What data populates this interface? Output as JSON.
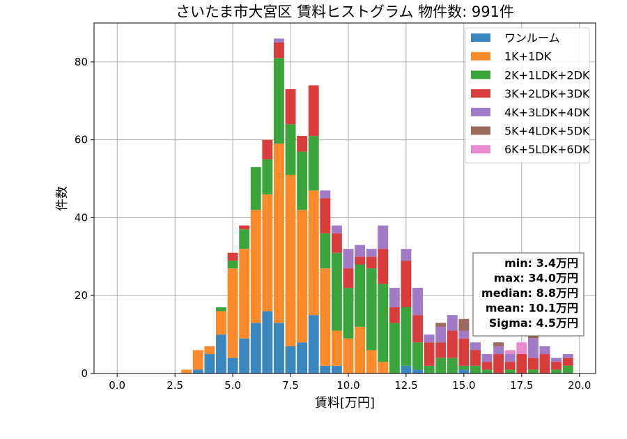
{
  "chart_data": {
    "type": "bar",
    "stacked": true,
    "title": "さいたま市大宮区 賃料ヒストグラム 物件数: 991件",
    "xlabel": "賃料[万円]",
    "ylabel": "件数",
    "xlim": [
      -1.0,
      20.7
    ],
    "ylim": [
      0,
      90
    ],
    "grid": true,
    "legend_position": "top-right",
    "bin_width": 0.5,
    "x_ticks": [
      {
        "value": 0.0,
        "label": "0.0"
      },
      {
        "value": 2.5,
        "label": "2.5"
      },
      {
        "value": 5.0,
        "label": "5.0"
      },
      {
        "value": 7.5,
        "label": "7.5"
      },
      {
        "value": 10.0,
        "label": "10.0"
      },
      {
        "value": 12.5,
        "label": "12.5"
      },
      {
        "value": 15.0,
        "label": "15.0"
      },
      {
        "value": 17.5,
        "label": "17.5"
      },
      {
        "value": 20.0,
        "label": "20.0"
      }
    ],
    "y_ticks": [
      {
        "value": 0,
        "label": "0"
      },
      {
        "value": 20,
        "label": "20"
      },
      {
        "value": 40,
        "label": "40"
      },
      {
        "value": 60,
        "label": "60"
      },
      {
        "value": 80,
        "label": "80"
      }
    ],
    "x": [
      3.0,
      3.5,
      4.0,
      4.5,
      5.0,
      5.5,
      6.0,
      6.5,
      7.0,
      7.5,
      8.0,
      8.5,
      9.0,
      9.5,
      10.0,
      10.5,
      11.0,
      11.5,
      12.0,
      12.5,
      13.0,
      13.5,
      14.0,
      14.5,
      15.0,
      15.5,
      16.0,
      16.5,
      17.0,
      17.5,
      18.0,
      18.5,
      19.0,
      19.5
    ],
    "series": [
      {
        "name": "ワンルーム",
        "color": "#3a87c0",
        "values": [
          0,
          1,
          5,
          10,
          4,
          9,
          13,
          16,
          13,
          7,
          8,
          15,
          2,
          2,
          0,
          0,
          0,
          0,
          0,
          2,
          1,
          0,
          0,
          0,
          1,
          0,
          0,
          0,
          0,
          0,
          0,
          0,
          0,
          0
        ]
      },
      {
        "name": "1K+1DK",
        "color": "#fd8a2b",
        "values": [
          1,
          5,
          2,
          6,
          23,
          23,
          29,
          30,
          46,
          44,
          34,
          32,
          25,
          9,
          9,
          12,
          6,
          3,
          0,
          0,
          0,
          0,
          0,
          0,
          0,
          0,
          0,
          0,
          0,
          0,
          0,
          0,
          0,
          0
        ]
      },
      {
        "name": "2K+1LDK+2DK",
        "color": "#3ca43c",
        "values": [
          0,
          0,
          0,
          1,
          2,
          5,
          11,
          9,
          22,
          13,
          15,
          14,
          9,
          20,
          13,
          16,
          21,
          20,
          13,
          15,
          7,
          2,
          4,
          4,
          1,
          2,
          1,
          0,
          1,
          0,
          1,
          0,
          1,
          2
        ]
      },
      {
        "name": "3K+2LDK+3DK",
        "color": "#d83c3c",
        "values": [
          0,
          0,
          0,
          0,
          2,
          1,
          0,
          5,
          4,
          9,
          4,
          13,
          9,
          5,
          5,
          2,
          3,
          9,
          4,
          12,
          7,
          6,
          4,
          7,
          7,
          4,
          2,
          5,
          2,
          5,
          3,
          5,
          2,
          2
        ]
      },
      {
        "name": "4K+3LDK+4DK",
        "color": "#a27bc8",
        "values": [
          0,
          0,
          0,
          0,
          0,
          0,
          0,
          0,
          1,
          0,
          0,
          0,
          2,
          2,
          5,
          3,
          2,
          6,
          5,
          3,
          7,
          2,
          4,
          4,
          2,
          2,
          2,
          2,
          2,
          0,
          5,
          2,
          1,
          1
        ]
      },
      {
        "name": "5K+4LDK+5DK",
        "color": "#9b6a5c",
        "values": [
          0,
          0,
          0,
          0,
          0,
          0,
          0,
          0,
          0,
          0,
          0,
          0,
          0,
          0,
          0,
          0,
          0,
          0,
          0,
          0,
          0,
          0,
          1,
          0,
          3,
          0,
          0,
          1,
          0,
          0,
          1,
          0,
          0,
          0
        ]
      },
      {
        "name": "6K+5LDK+6DK",
        "color": "#e78ad0",
        "values": [
          0,
          0,
          0,
          0,
          0,
          0,
          0,
          0,
          0,
          0,
          0,
          0,
          0,
          0,
          0,
          0,
          0,
          0,
          0,
          0,
          0,
          0,
          0,
          0,
          0,
          0,
          0,
          0,
          1,
          3,
          0,
          0,
          0,
          0
        ]
      }
    ],
    "stats_box": [
      "min: 3.4万円",
      "max: 34.0万円",
      "median: 8.8万円",
      "mean: 10.1万円",
      "Sigma: 4.5万円"
    ]
  }
}
